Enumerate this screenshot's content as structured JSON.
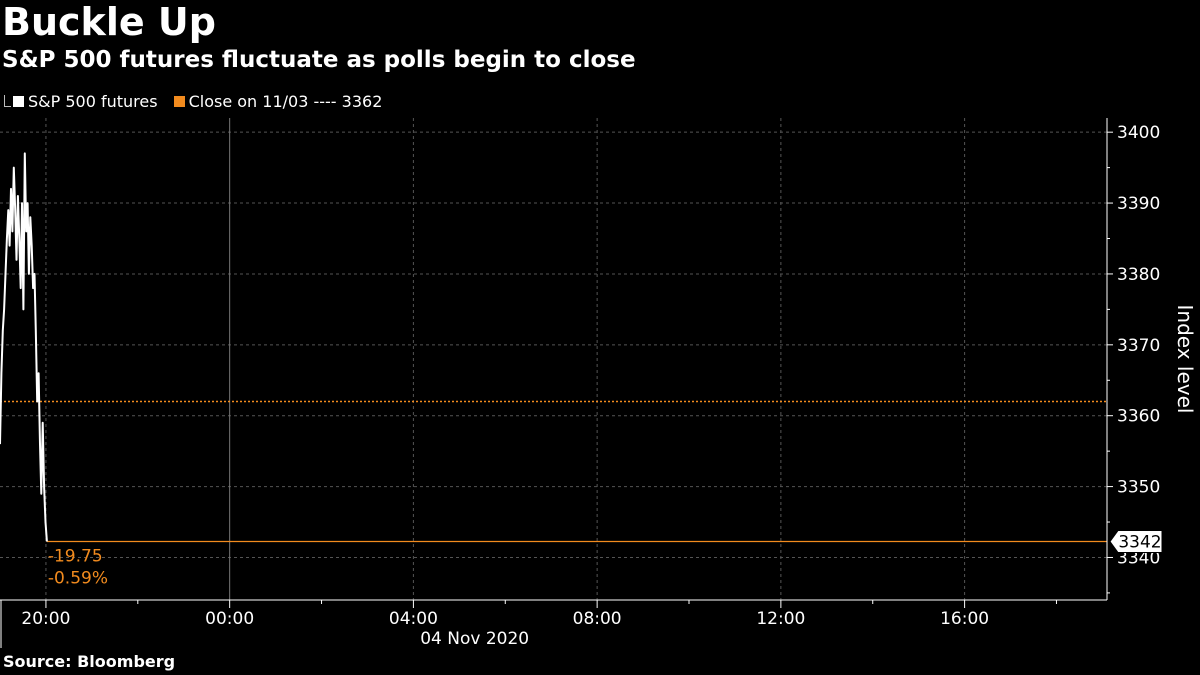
{
  "header": {
    "title": "Buckle Up",
    "subtitle": "S&P 500 futures fluctuate as polls begin to close"
  },
  "legend": {
    "series_label": "S&P 500 futures",
    "close_label": "Close on 11/03 ---- 3362"
  },
  "source": "Source: Bloomberg",
  "colors": {
    "background": "#000000",
    "series": "#ffffff",
    "reference": "#f28b1e",
    "grid": "#555555"
  },
  "chart_data": {
    "type": "line",
    "ylabel": "Index level",
    "xlabel": "04 Nov 2020",
    "ylim": [
      3334,
      3402
    ],
    "yticks": [
      3340,
      3350,
      3360,
      3370,
      3380,
      3390,
      3400
    ],
    "ytick_labels": [
      "3340",
      "3350",
      "3360",
      "3370",
      "3380",
      "3390",
      "3400"
    ],
    "xlim_hours": [
      -5.0,
      19.1
    ],
    "xticks": [
      {
        "label": "20:00",
        "hour": -4
      },
      {
        "label": "00:00",
        "hour": 0
      },
      {
        "label": "04:00",
        "hour": 4
      },
      {
        "label": "08:00",
        "hour": 8
      },
      {
        "label": "12:00",
        "hour": 12
      },
      {
        "label": "16:00",
        "hour": 16
      }
    ],
    "x_minor_hours": [
      -2,
      2,
      6,
      10,
      14,
      18
    ],
    "date_label": "04 Nov 2020",
    "date_label_hour": 0,
    "grid": true,
    "legend_position": "top-left",
    "series": [
      {
        "name": "S&P 500 futures",
        "x_hours": [
          -5.0,
          -4.97,
          -4.94,
          -4.91,
          -4.88,
          -4.85,
          -4.82,
          -4.79,
          -4.76,
          -4.73,
          -4.7,
          -4.67,
          -4.64,
          -4.61,
          -4.58,
          -4.55,
          -4.52,
          -4.49,
          -4.46,
          -4.43,
          -4.4,
          -4.37,
          -4.34,
          -4.31,
          -4.28,
          -4.25,
          -4.22,
          -4.19,
          -4.16,
          -4.13,
          -4.1,
          -4.07,
          -4.04,
          -4.01,
          -3.98
        ],
        "values": [
          3356,
          3366,
          3372,
          3375,
          3380,
          3385,
          3389,
          3384,
          3392,
          3386,
          3395,
          3389,
          3382,
          3391,
          3385,
          3378,
          3390,
          3375,
          3397,
          3386,
          3390,
          3380,
          3388,
          3384,
          3378,
          3380,
          3372,
          3362,
          3366,
          3356,
          3349,
          3359,
          3350,
          3345,
          3342.25
        ]
      }
    ],
    "reference_line": {
      "label": "Close on 11/03",
      "value": 3362
    },
    "last_value_marker": {
      "label": "3342",
      "value": 3342.25
    },
    "annotations": {
      "change": "-19.75",
      "change_pct": "-0.59%"
    }
  }
}
